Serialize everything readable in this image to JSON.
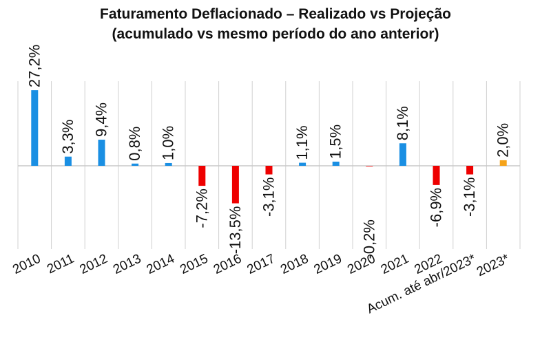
{
  "chart_data": {
    "type": "bar",
    "title": "Faturamento Deflacionado – Realizado vs Projeção",
    "subtitle": "(acumulado vs mesmo período do ano anterior)",
    "xlabel": "",
    "ylabel": "",
    "ylim": [
      -15.0,
      30.0
    ],
    "grid": {
      "vertical": true,
      "horizontal": false
    },
    "legend": "none",
    "categories": [
      "2010",
      "2011",
      "2012",
      "2013",
      "2014",
      "2015",
      "2016",
      "2017",
      "2018",
      "2019",
      "2020",
      "2021",
      "2022",
      "Acum. até abr/2023*",
      "2023*"
    ],
    "values": [
      27.2,
      3.3,
      9.4,
      0.8,
      1.0,
      -7.2,
      -13.5,
      -3.1,
      1.1,
      1.5,
      -0.2,
      8.1,
      -6.9,
      -3.1,
      2.0
    ],
    "data_labels": [
      "27,2%",
      "3,3%",
      "9,4%",
      "0,8%",
      "1,0%",
      "-7,2%",
      "-13,5%",
      "-3,1%",
      "1,1%",
      "1,5%",
      "-0,2%",
      "8,1%",
      "-6,9%",
      "-3,1%",
      "2,0%"
    ],
    "colors": {
      "positive": "#1a8fe3",
      "negative": "#ee0000",
      "projection": "#f5a31a",
      "gridline": "#d0d0d0",
      "axis": "#c8c8c8"
    },
    "projection_index": 14
  }
}
